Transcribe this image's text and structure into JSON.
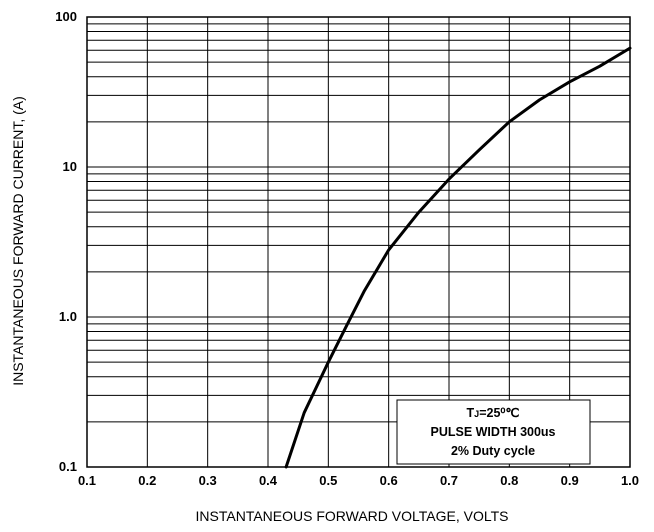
{
  "chart_data": {
    "type": "line",
    "title": "",
    "xlabel": "INSTANTANEOUS FORWARD VOLTAGE, VOLTS",
    "ylabel": "INSTANTANEOUS  FORWARD CURRENT, (A)",
    "xscale": "linear",
    "yscale": "log",
    "xlim": [
      0.1,
      1.0
    ],
    "ylim": [
      0.1,
      100
    ],
    "grid": true,
    "x_ticks": [
      "0.1",
      "0.2",
      "0.3",
      "0.4",
      "0.5",
      "0.6",
      "0.7",
      "0.8",
      "0.9",
      "1.0"
    ],
    "y_ticks": [
      {
        "value": 100,
        "label": "100"
      },
      {
        "value": 10,
        "label": "10"
      },
      {
        "value": 1,
        "label": "1.0"
      },
      {
        "value": 0.1,
        "label": "0.1"
      }
    ],
    "annotation": {
      "line1_main": "T",
      "line1_sub": "J",
      "line1_rest": "=25⁰℃",
      "line2": "PULSE WIDTH 300us",
      "line3": "2% Duty cycle"
    },
    "series": [
      {
        "x": [
          0.43,
          0.46,
          0.5,
          0.53,
          0.56,
          0.6,
          0.65,
          0.7,
          0.75,
          0.8,
          0.85,
          0.9,
          0.95,
          1.0
        ],
        "y": [
          0.1,
          0.23,
          0.5,
          0.87,
          1.5,
          2.8,
          5.0,
          8.3,
          13,
          20,
          28,
          37,
          47,
          62
        ]
      }
    ]
  }
}
